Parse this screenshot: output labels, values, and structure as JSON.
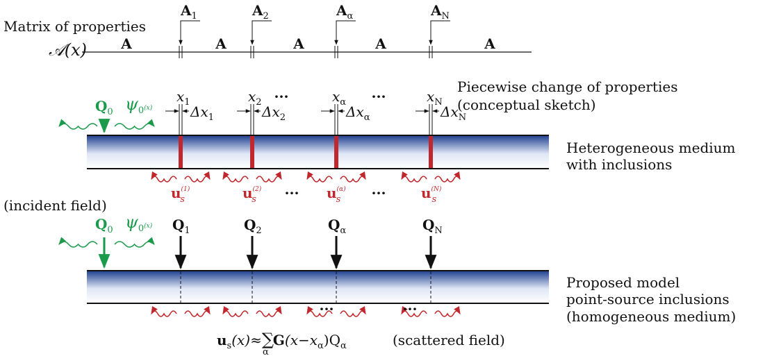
{
  "matrix_label": "Matrix of properties",
  "property_function": "𝒜(x)",
  "segment_labels": [
    "A",
    "A",
    "A",
    "A",
    "A"
  ],
  "piecewise_label": [
    "Piecewise change of properties",
    "(conceptual sketch)"
  ],
  "incident": {
    "source": {
      "base": "Q",
      "sub": "0"
    },
    "wave": {
      "base": "ψ",
      "sub": "0",
      "arg": "(x)"
    },
    "label": "(incident field)"
  },
  "inclusions": [
    {
      "property": {
        "base": "A",
        "sub": "1"
      },
      "position": {
        "base": "x",
        "sub": "1"
      },
      "spacing": {
        "base": "Δx",
        "sub": "1"
      },
      "scattered": {
        "base": "u",
        "sub": "s",
        "sup": "(1)"
      },
      "source": {
        "base": "Q",
        "sub": "1"
      }
    },
    {
      "property": {
        "base": "A",
        "sub": "2"
      },
      "position": {
        "base": "x",
        "sub": "2"
      },
      "spacing": {
        "base": "Δx",
        "sub": "2"
      },
      "scattered": {
        "base": "u",
        "sub": "s",
        "sup": "(2)"
      },
      "source": {
        "base": "Q",
        "sub": "2"
      }
    },
    {
      "property": {
        "base": "A",
        "sub": "α"
      },
      "position": {
        "base": "x",
        "sub": "α"
      },
      "spacing": {
        "base": "Δx",
        "sub": "α"
      },
      "scattered": {
        "base": "u",
        "sub": "s",
        "sup": "(α)"
      },
      "source": {
        "base": "Q",
        "sub": "α"
      }
    },
    {
      "property": {
        "base": "A",
        "sub": "N"
      },
      "position": {
        "base": "x",
        "sub": "N"
      },
      "spacing": {
        "base": "Δx",
        "sub": "N"
      },
      "scattered": {
        "base": "u",
        "sub": "s",
        "sup": "(N)"
      },
      "source": {
        "base": "Q",
        "sub": "N"
      }
    }
  ],
  "ellipses": [
    "···",
    "···",
    "···",
    "···",
    "···",
    "···"
  ],
  "heterogeneous_label": [
    "Heterogeneous medium",
    "with inclusions"
  ],
  "model_label": [
    "Proposed model",
    "point-source inclusions",
    "(homogeneous medium)"
  ],
  "formula": [
    "u",
    "s",
    "(x)≈",
    "∑",
    "α",
    "G",
    "(x−x",
    "α",
    ")Q",
    "α"
  ],
  "formula_note": "(scattered field)"
}
